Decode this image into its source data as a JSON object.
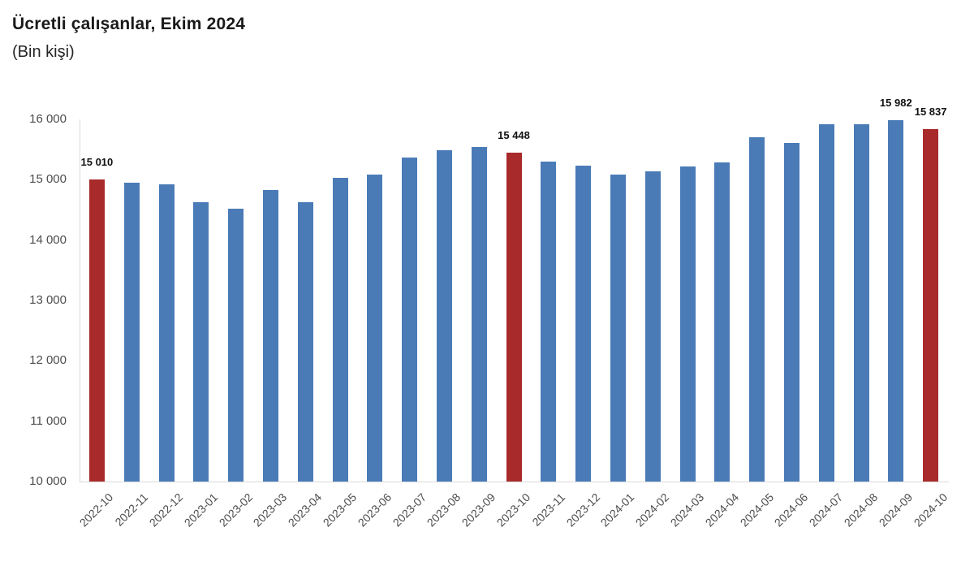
{
  "title": "Ücretli çalışanlar, Ekim 2024",
  "subtitle": "(Bin kişi)",
  "chart_data": {
    "type": "bar",
    "title": "Ücretli çalışanlar, Ekim 2024",
    "subtitle": "(Bin kişi)",
    "unit": "Bin kişi",
    "categories": [
      "2022-10",
      "2022-11",
      "2022-12",
      "2023-01",
      "2023-02",
      "2023-03",
      "2023-04",
      "2023-05",
      "2023-06",
      "2023-07",
      "2023-08",
      "2023-09",
      "2023-10",
      "2023-11",
      "2023-12",
      "2024-01",
      "2024-02",
      "2024-03",
      "2024-04",
      "2024-05",
      "2024-06",
      "2024-07",
      "2024-08",
      "2024-09",
      "2024-10"
    ],
    "values": [
      15010,
      14950,
      14930,
      14630,
      14520,
      14830,
      14630,
      15030,
      15080,
      15370,
      15485,
      15540,
      15448,
      15300,
      15230,
      15090,
      15140,
      15225,
      15290,
      15705,
      15610,
      15920,
      15915,
      15982,
      15837
    ],
    "highlight_indices": [
      0,
      12,
      24
    ],
    "data_labels": [
      {
        "index": 0,
        "text": "15 010"
      },
      {
        "index": 12,
        "text": "15 448"
      },
      {
        "index": 23,
        "text": "15 982"
      },
      {
        "index": 24,
        "text": "15 837"
      }
    ],
    "y_ticks": [
      "16 000",
      "15 000",
      "14 000",
      "13 000",
      "12 000",
      "11 000",
      "10 000"
    ],
    "ylim": [
      10000,
      16000
    ],
    "grid": false,
    "legend": null,
    "xlabel": "",
    "ylabel": "",
    "colors": {
      "bar_default": "#4A7BB7",
      "bar_highlight": "#A92A2A",
      "axis_line": "#D9D9D9",
      "tick_text": "#4D4D4D",
      "data_label_text": "#111111"
    }
  }
}
